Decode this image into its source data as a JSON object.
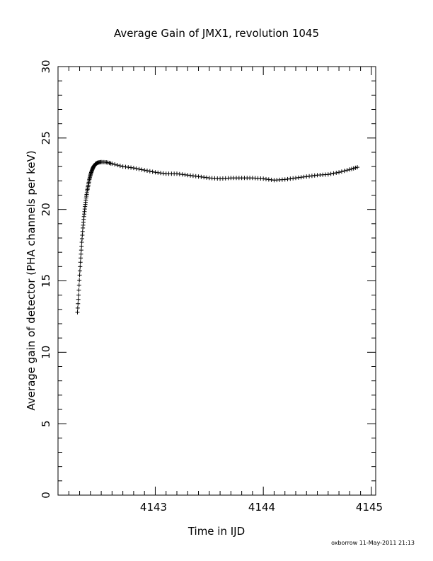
{
  "chart_data": {
    "type": "scatter",
    "title": "Average Gain of JMX1, revolution 1045",
    "xlabel": "Time in IJD",
    "ylabel": "Average gain of detector (PHA channels per keV)",
    "xlim": [
      4142.1,
      4145.04
    ],
    "ylim": [
      0,
      30
    ],
    "x_ticks": [
      "4143",
      "4144",
      "4145"
    ],
    "y_ticks": [
      "0",
      "5",
      "10",
      "15",
      "20",
      "25",
      "30"
    ],
    "marker": "plus",
    "grid": false,
    "legend": "none",
    "series": [
      {
        "x": [
          4142.28,
          4142.29,
          4142.3,
          4142.31,
          4142.32,
          4142.33,
          4142.34,
          4142.35,
          4142.36,
          4142.37,
          4142.38,
          4142.39,
          4142.4,
          4142.41,
          4142.42,
          4142.43,
          4142.44,
          4142.45,
          4142.47,
          4142.5,
          4142.55,
          4142.6,
          4142.7,
          4142.8,
          4142.9,
          4143.0,
          4143.1,
          4143.2,
          4143.3,
          4143.4,
          4143.5,
          4143.6,
          4143.7,
          4143.8,
          4143.9,
          4144.0,
          4144.1,
          4144.2,
          4144.3,
          4144.4,
          4144.5,
          4144.6,
          4144.7,
          4144.8,
          4144.87
        ],
        "y": [
          12.8,
          14.0,
          15.4,
          16.6,
          17.7,
          18.7,
          19.5,
          20.2,
          20.8,
          21.3,
          21.7,
          22.1,
          22.4,
          22.65,
          22.85,
          23.0,
          23.1,
          23.2,
          23.28,
          23.32,
          23.3,
          23.2,
          23.0,
          22.9,
          22.75,
          22.6,
          22.5,
          22.5,
          22.4,
          22.3,
          22.2,
          22.15,
          22.2,
          22.2,
          22.2,
          22.15,
          22.05,
          22.1,
          22.2,
          22.3,
          22.4,
          22.45,
          22.6,
          22.8,
          22.95
        ]
      }
    ]
  },
  "footer": "oxborrow 11-May-2011 21:13"
}
